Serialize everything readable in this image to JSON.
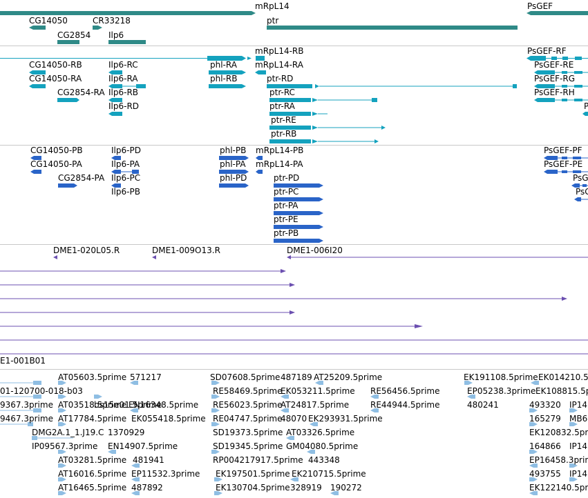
{
  "colors": {
    "gene": "#2f8a87",
    "mrna": "#14a2be",
    "cds": "#2a64c8",
    "clone": "#6b4fb0",
    "est": "#8fbee3",
    "divider": "#c8c8c8"
  },
  "tracks": {
    "genes": {
      "labels": [
        "mRpL14",
        "CG14050",
        "CR33218",
        "ptr",
        "PsGEF",
        "CG2854",
        "Ilp6"
      ]
    },
    "mrna": {
      "labels": [
        "mRpL14-RB",
        "PsGEF-RF",
        "CG14050-RB",
        "Ilp6-RC",
        "phl-RA",
        "mRpL14-RA",
        "PsGEF-RE",
        "CG14050-RA",
        "Ilp6-RA",
        "phl-RB",
        "ptr-RD",
        "PsGEF-RG",
        "CG2854-RA",
        "Ilp6-RB",
        "ptr-RC",
        "PsGEF-RH",
        "Ilp6-RD",
        "ptr-RA",
        "P",
        "ptr-RE",
        "ptr-RB"
      ]
    },
    "cds": {
      "labels": [
        "CG14050-PB",
        "Ilp6-PD",
        "phl-PB",
        "mRpL14-PB",
        "PsGEF-PF",
        "CG14050-PA",
        "Ilp6-PA",
        "phl-PA",
        "mRpL14-PA",
        "PsGEF-PE",
        "CG2854-PA",
        "Ilp6-PC",
        "phl-PD",
        "ptr-PD",
        "PsG",
        "Ilp6-PB",
        "ptr-PC",
        "PsG",
        "ptr-PA",
        "ptr-PE",
        "ptr-PB"
      ]
    },
    "clones": {
      "labels": [
        "DME1-020L05.R",
        "DME1-009O13.R",
        "DME1-006I20",
        "E1-001B01"
      ]
    },
    "ests": {
      "labels": [
        "AT05603.5prime",
        "571217",
        "SD07608.5prime",
        "487189",
        "AT25209.5prime",
        "EK191108.5prime",
        "EK014210.5",
        "01-120700-018-b03",
        "RE58469.5prime",
        "EK053211.5prime",
        "RE56456.5prime",
        "EP05238.3prime",
        "EK108815.5prime",
        "9367.3prime",
        "AT03518.5prime",
        "bs15e01.5prime",
        "EN16348.5prime",
        "RE56023.5prime",
        "AT24817.5prime",
        "RE44944.5prime",
        "480241",
        "493320",
        "IP14",
        "9467.3prime",
        "AT17784.5prime",
        "EK055418.5prime",
        "RE04747.5prime",
        "48070",
        "EK293931.5prime",
        "165279",
        "MB6",
        "DMG2A.1_1.J19.C",
        "1370929",
        "SD19373.5prime",
        "AT03326.5prime",
        "EK120832.5prime",
        "IP09567.3prime",
        "EN14907.5prime",
        "SD19345.5prime",
        "GM04080.5prime",
        "164866",
        "IP14",
        "AT03281.5prime",
        "481941",
        "RP004217917.5prime",
        "443348",
        "EP16458.3prime",
        "AT16016.5prime",
        "EP11532.3prime",
        "EK197501.5prime",
        "EK210715.5prime",
        "493755",
        "IP14",
        "AT16465.5prime",
        "487892",
        "EK130704.5prime",
        "328919",
        "190272",
        "EK122140.5prime"
      ]
    }
  }
}
